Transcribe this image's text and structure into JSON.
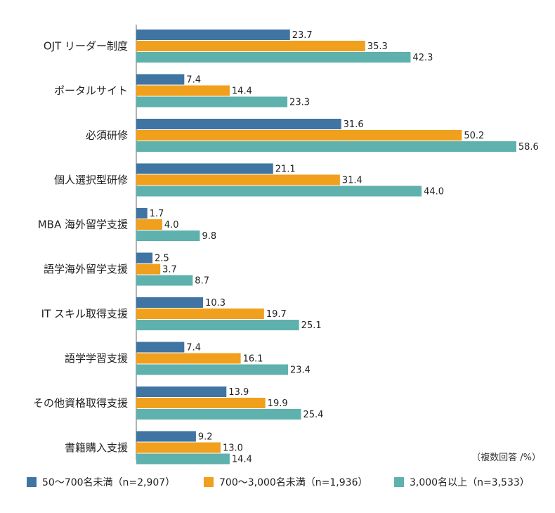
{
  "chart_data": {
    "type": "bar",
    "orientation": "horizontal",
    "title": "",
    "xlabel": "",
    "ylabel": "",
    "xlim": [
      0,
      60
    ],
    "grid": false,
    "legend_position": "bottom",
    "unit_note": "（複数回答 /%）",
    "categories": [
      "OJT リーダー制度",
      "ポータルサイト",
      "必須研修",
      "個人選択型研修",
      "MBA 海外留学支援",
      "語学海外留学支援",
      "IT スキル取得支援",
      "語学学習支援",
      "その他資格取得支援",
      "書籍購入支援"
    ],
    "series": [
      {
        "name": "50〜700名未満（n=2,907）",
        "color": "#3f74a3",
        "values": [
          23.7,
          7.4,
          31.6,
          21.1,
          1.7,
          2.5,
          10.3,
          7.4,
          13.9,
          9.2
        ],
        "labels": [
          "23.7",
          "7.4",
          "31.6",
          "21.1",
          "1.7",
          "2.5",
          "10.3",
          "7.4",
          "13.9",
          "9.2"
        ]
      },
      {
        "name": "700〜3,000名未満（n=1,936）",
        "color": "#f0a01c",
        "values": [
          35.3,
          14.4,
          50.2,
          31.4,
          4.0,
          3.7,
          19.7,
          16.1,
          19.9,
          13.0
        ],
        "labels": [
          "35.3",
          "14.4",
          "50.2",
          "31.4",
          "4.0",
          "3.7",
          "19.7",
          "16.1",
          "19.9",
          "13.0"
        ]
      },
      {
        "name": "3,000名以上（n=3,533）",
        "color": "#5eb1ac",
        "values": [
          42.3,
          23.3,
          58.6,
          44.0,
          9.8,
          8.7,
          25.1,
          23.4,
          25.4,
          14.4
        ],
        "labels": [
          "42.3",
          "23.3",
          "58.6",
          "44.0",
          "9.8",
          "8.7",
          "25.1",
          "23.4",
          "25.4",
          "14.4"
        ]
      }
    ]
  }
}
